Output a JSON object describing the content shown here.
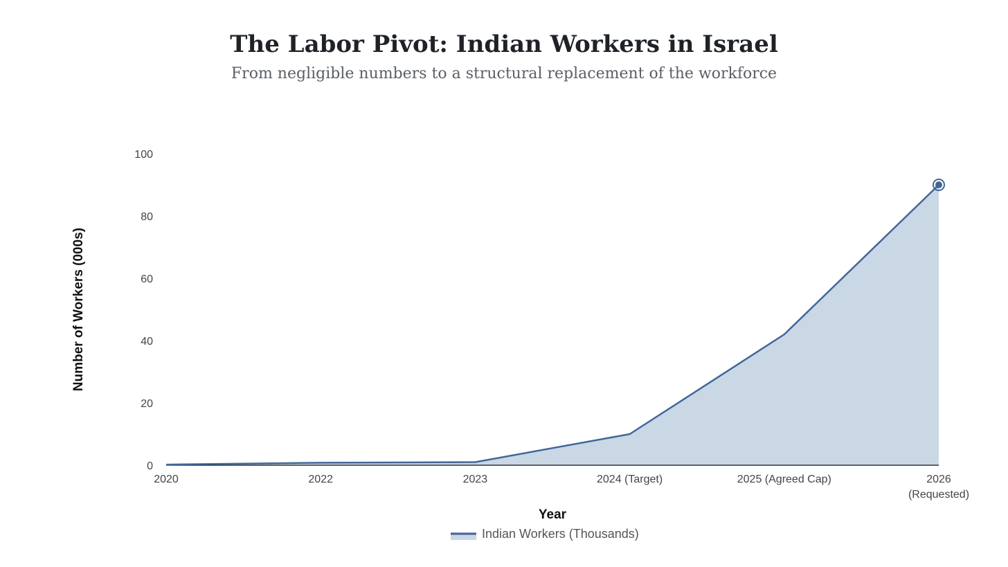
{
  "header": {
    "title": "The Labor Pivot: Indian Workers in Israel",
    "subtitle": "From negligible numbers to a structural replacement of the workforce"
  },
  "colors": {
    "line": "#40679a",
    "area": "#cad7e5",
    "axis": "#111111"
  },
  "chart_data": {
    "type": "area",
    "title": "The Labor Pivot: Indian Workers in Israel",
    "subtitle": "From negligible numbers to a structural replacement of the workforce",
    "xlabel": "Year",
    "ylabel": "Number of Workers (000s)",
    "categories": [
      "2020",
      "2022",
      "2023",
      "2024 (Target)",
      "2025 (Agreed Cap)",
      "2026 (Requested)"
    ],
    "series": [
      {
        "name": "Indian Workers (Thousands)",
        "values": [
          0.2,
          0.8,
          1.0,
          10,
          42,
          90
        ]
      }
    ],
    "ylim": [
      0,
      100
    ],
    "yticks": [
      0,
      20,
      40,
      60,
      80,
      100
    ],
    "grid": false,
    "legend_position": "bottom-center",
    "highlight_last_point": true
  }
}
